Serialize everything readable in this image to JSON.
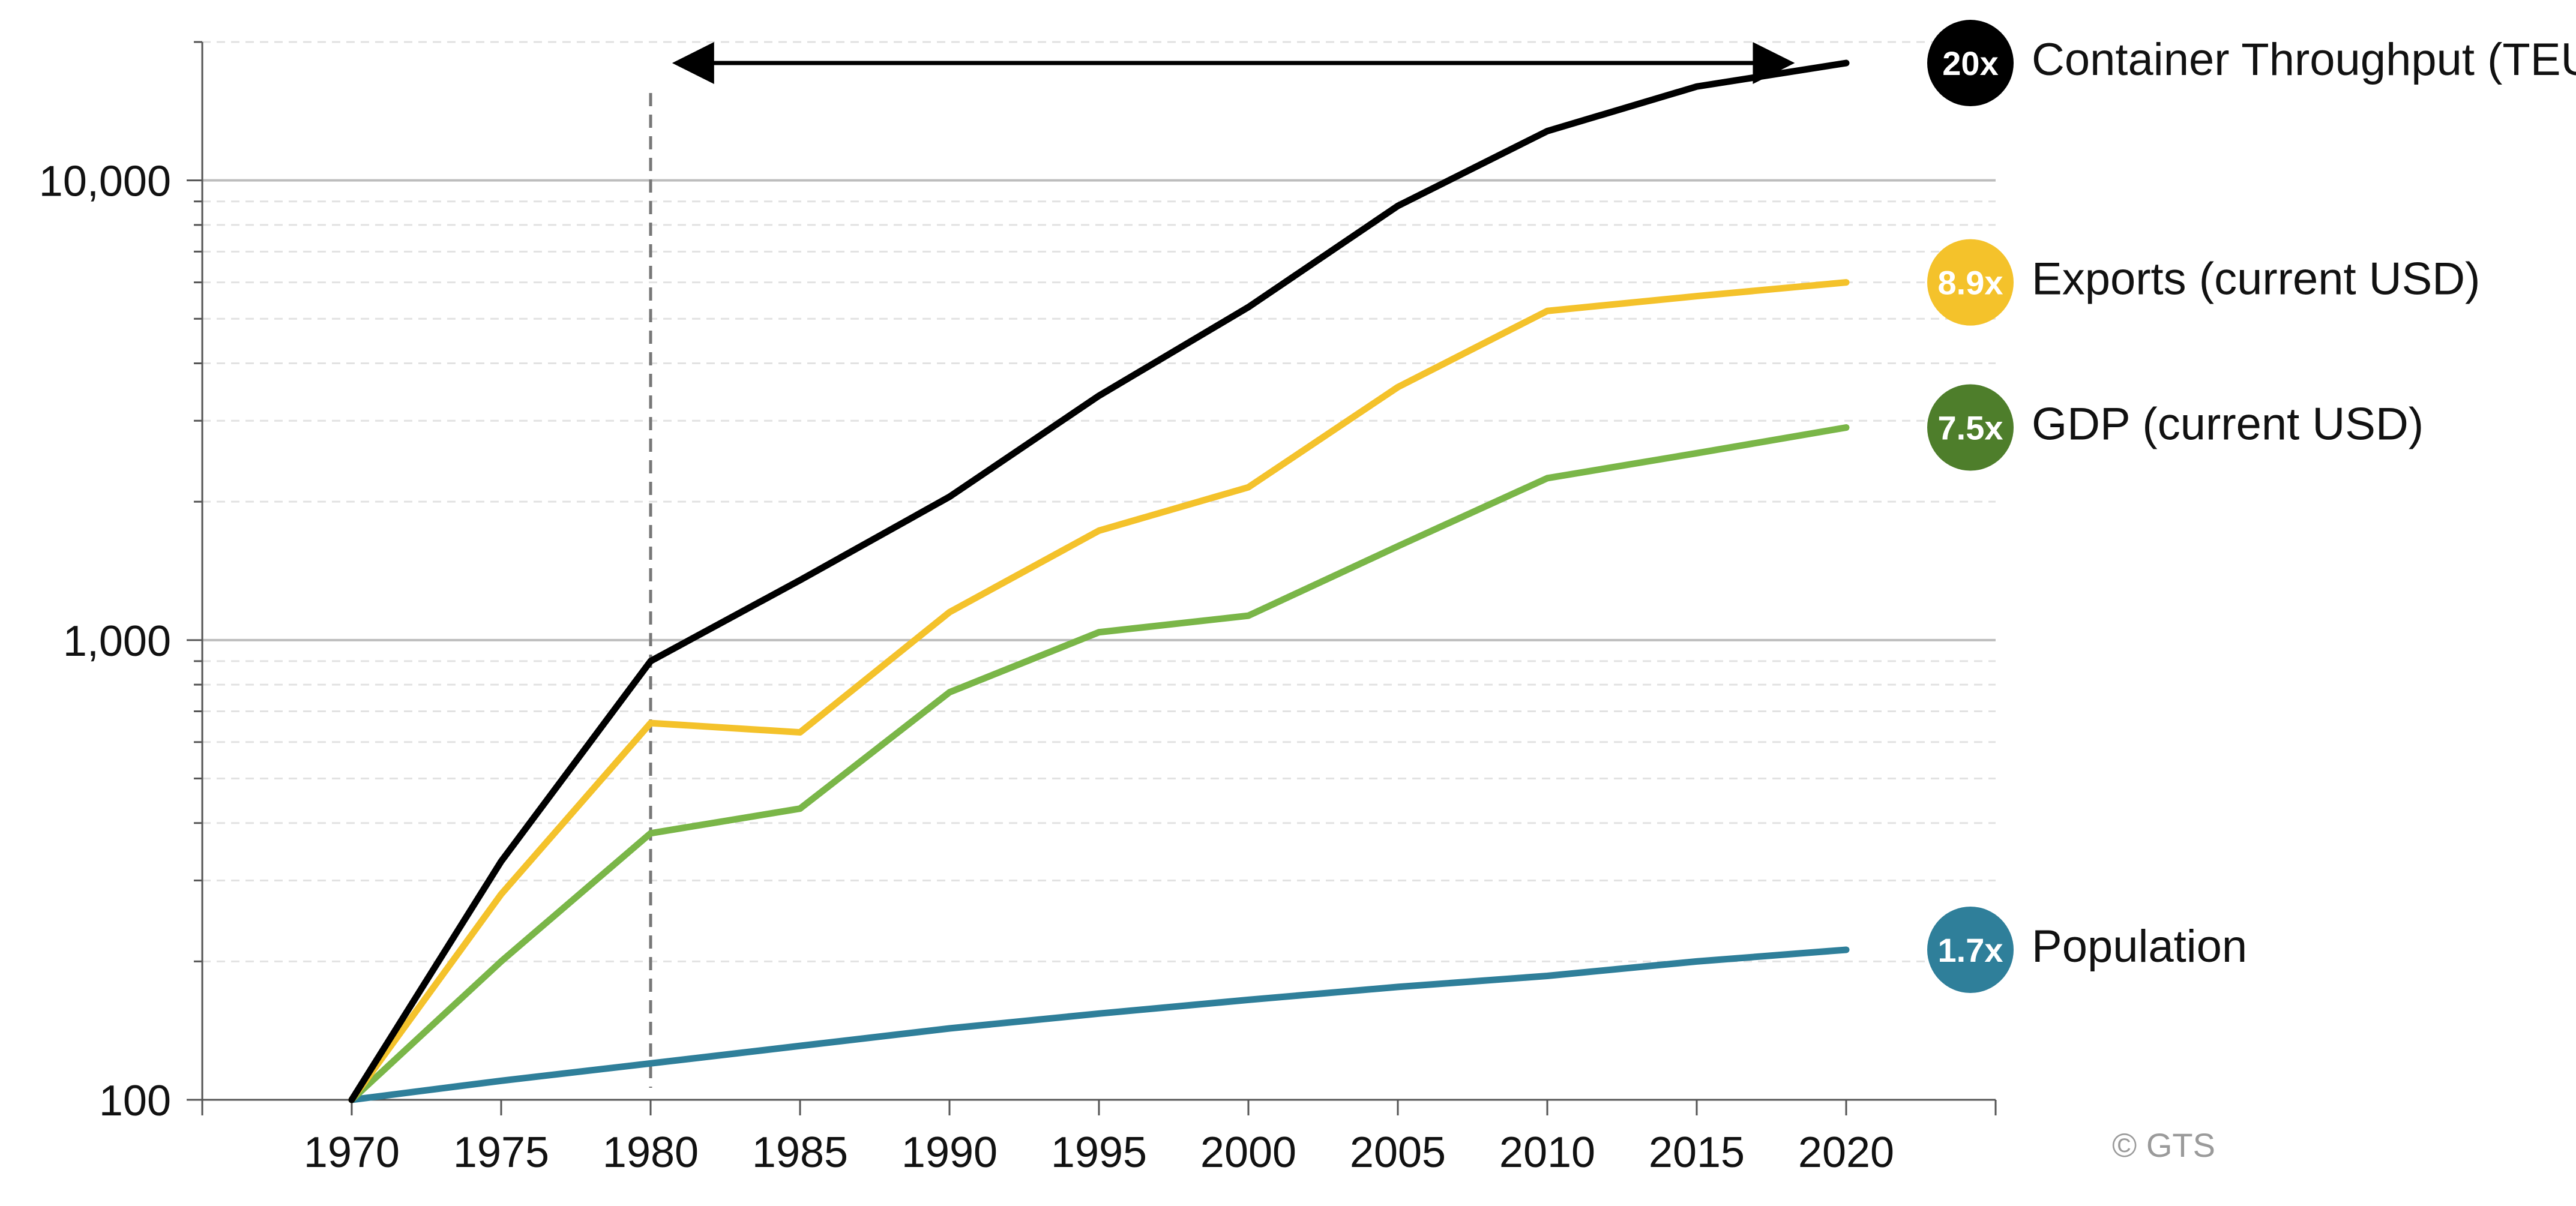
{
  "chart_data": {
    "type": "line",
    "title": "",
    "xlabel": "",
    "ylabel": "",
    "y_scale": "log",
    "ylim": [
      100,
      20000
    ],
    "xlim": [
      1965,
      2025
    ],
    "x": [
      1970,
      1975,
      1980,
      1985,
      1990,
      1995,
      2000,
      2005,
      2010,
      2015,
      2020
    ],
    "x_tick_labels": [
      "1970",
      "1975",
      "1980",
      "1985",
      "1990",
      "1995",
      "2000",
      "2005",
      "2010",
      "2015",
      "2020"
    ],
    "y_ticks": [
      100,
      1000,
      10000
    ],
    "y_tick_labels": [
      "100",
      "1,000",
      "10,000"
    ],
    "grid": true,
    "legend": "inline-right",
    "series": [
      {
        "name": "Container Throughput (TEU)",
        "multiplier": "20x",
        "color": "#000000",
        "badge_color": "#000000",
        "values": [
          100,
          330,
          900,
          1350,
          2050,
          3400,
          5300,
          8800,
          12800,
          16000,
          18000
        ]
      },
      {
        "name": "Exports (current USD)",
        "multiplier": "8.9x",
        "color": "#f4c22b",
        "badge_color": "#f4c22b",
        "values": [
          100,
          280,
          660,
          630,
          1150,
          1730,
          2150,
          3550,
          5200,
          5600,
          6000
        ]
      },
      {
        "name": "GDP (current USD)",
        "multiplier": "7.5x",
        "color": "#7ab648",
        "badge_color": "#4e7e2b",
        "values": [
          100,
          200,
          380,
          430,
          770,
          1040,
          1130,
          1600,
          2250,
          2550,
          2900
        ]
      },
      {
        "name": "Population",
        "multiplier": "1.7x",
        "color": "#2f7f9a",
        "badge_color": "#2f7f9a",
        "values": [
          100,
          110,
          120,
          131,
          143,
          154,
          165,
          176,
          186,
          200,
          212
        ]
      }
    ],
    "annotations": {
      "reference_line_x": 1980,
      "arrow": {
        "from": 1981,
        "to": 2018,
        "y": 18000
      }
    },
    "credit": "© GTS"
  }
}
